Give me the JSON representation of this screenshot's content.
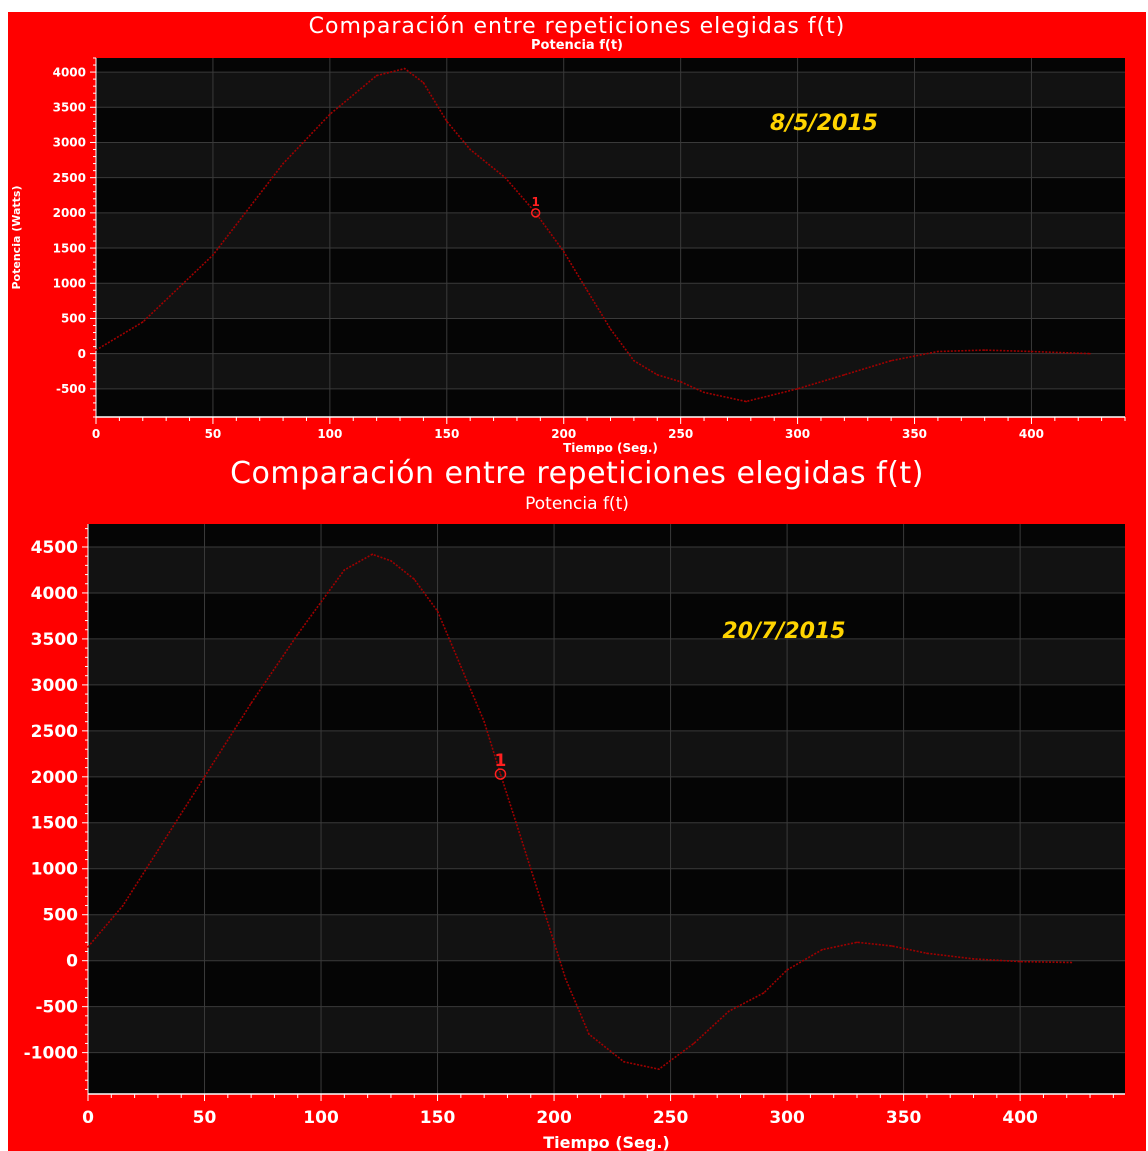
{
  "colors": {
    "background": "#ff0000",
    "plot": "#050505",
    "band": "#121212",
    "grid": "#3a3a3a",
    "series": "#a00000",
    "text": "#ffffff",
    "annotation": "#ffd400"
  },
  "chart_data": [
    {
      "type": "line",
      "title": "Comparación entre repeticiones elegidas f(t)",
      "subtitle": "Potencia f(t)",
      "xlabel": "Tiempo (Seg.)",
      "ylabel": "Potencia (Watts)",
      "xlim": [
        0,
        440
      ],
      "ylim": [
        -900,
        4200
      ],
      "xticks": [
        0,
        50,
        100,
        150,
        200,
        250,
        300,
        350,
        400
      ],
      "yticks": [
        -500,
        0,
        500,
        1000,
        1500,
        2000,
        2500,
        3000,
        3500,
        4000
      ],
      "annotation": "8/5/2015",
      "marker": {
        "label": "1",
        "x": 188,
        "y": 2000
      },
      "series": [
        {
          "x": [
            0,
            20,
            50,
            80,
            100,
            120,
            132,
            140,
            150,
            160,
            175,
            188,
            200,
            210,
            220,
            230,
            240,
            250,
            260,
            278,
            300,
            320,
            340,
            360,
            380,
            400,
            425
          ],
          "values": [
            50,
            450,
            1400,
            2700,
            3400,
            3950,
            4050,
            3850,
            3300,
            2900,
            2500,
            2000,
            1450,
            900,
            350,
            -100,
            -300,
            -400,
            -550,
            -680,
            -500,
            -300,
            -100,
            30,
            50,
            30,
            0
          ]
        }
      ]
    },
    {
      "type": "line",
      "title": "Comparación entre repeticiones elegidas f(t)",
      "subtitle": "Potencia f(t)",
      "xlabel": "Tiempo (Seg.)",
      "ylabel": "",
      "xlim": [
        0,
        445
      ],
      "ylim": [
        -1450,
        4750
      ],
      "xticks": [
        0,
        50,
        100,
        150,
        200,
        250,
        300,
        350,
        400
      ],
      "yticks": [
        -1000,
        -500,
        0,
        500,
        1000,
        1500,
        2000,
        2500,
        3000,
        3500,
        4000,
        4500
      ],
      "annotation": "20/7/2015",
      "marker": {
        "label": "1",
        "x": 177,
        "y": 2030
      },
      "series": [
        {
          "x": [
            0,
            15,
            30,
            50,
            70,
            90,
            110,
            122,
            130,
            140,
            150,
            160,
            170,
            177,
            185,
            195,
            205,
            215,
            230,
            245,
            260,
            275,
            290,
            300,
            315,
            330,
            345,
            360,
            380,
            400,
            422
          ],
          "values": [
            150,
            600,
            1200,
            2000,
            2800,
            3550,
            4250,
            4420,
            4350,
            4150,
            3800,
            3200,
            2600,
            2030,
            1400,
            600,
            -200,
            -800,
            -1100,
            -1180,
            -900,
            -550,
            -350,
            -100,
            120,
            200,
            160,
            80,
            20,
            -10,
            -20
          ]
        }
      ]
    }
  ]
}
